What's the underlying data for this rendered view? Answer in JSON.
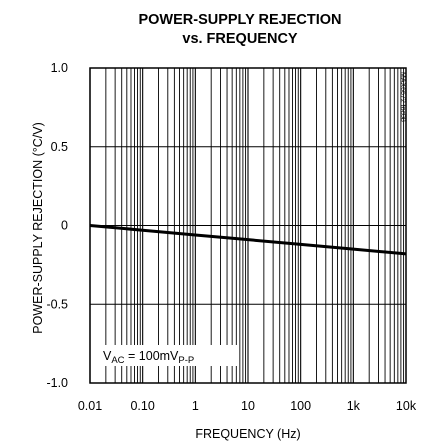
{
  "chart_data": {
    "type": "line",
    "title_line1": "POWER-SUPPLY REJECTION",
    "title_line2": "vs. FREQUENCY",
    "xlabel": "FREQUENCY (Hz)",
    "ylabel": "POWER-SUPPLY REJECTION (°C/V)",
    "x_scale": "log",
    "xlim": [
      0.01,
      10000
    ],
    "ylim": [
      -1.0,
      1.0
    ],
    "x_ticks": [
      {
        "value": 0.01,
        "label": "0.01"
      },
      {
        "value": 0.1,
        "label": "0.10"
      },
      {
        "value": 1,
        "label": "1"
      },
      {
        "value": 10,
        "label": "10"
      },
      {
        "value": 100,
        "label": "100"
      },
      {
        "value": 1000,
        "label": "1k"
      },
      {
        "value": 10000,
        "label": "10k"
      }
    ],
    "y_ticks": [
      {
        "value": 1.0,
        "label": "1.0"
      },
      {
        "value": 0.5,
        "label": "0.5"
      },
      {
        "value": 0,
        "label": "0"
      },
      {
        "value": -0.5,
        "label": "-0.5"
      },
      {
        "value": -1.0,
        "label": "-1.0"
      }
    ],
    "grid": true,
    "series": [
      {
        "x": [
          0.01,
          0.1,
          1,
          10,
          100,
          1000,
          10000
        ],
        "y": [
          0.0,
          -0.03,
          -0.06,
          -0.09,
          -0.12,
          -0.15,
          -0.18
        ],
        "color": "#000000"
      }
    ],
    "annotation": {
      "base": "V",
      "sub1": "AC",
      "mid": " = 100mV",
      "sub2": "P-P"
    },
    "watermark": "MAX6672 toc08"
  }
}
